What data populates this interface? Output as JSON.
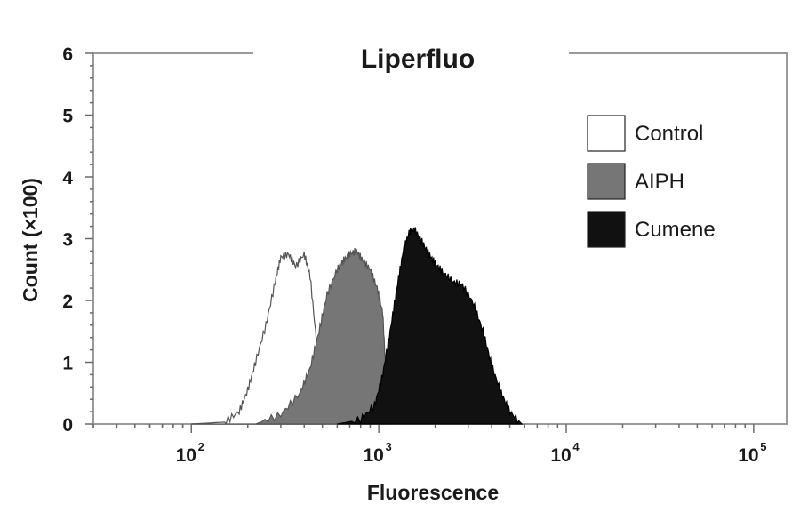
{
  "chart_data": {
    "type": "area",
    "title": "Liperfluo",
    "xlabel": "Fluorescence",
    "ylabel": "Count (×100)",
    "x_scale": "log",
    "xlim": [
      30,
      150000
    ],
    "ylim": [
      0,
      6
    ],
    "x_ticks": [
      {
        "value": 100,
        "base": "10",
        "exp": "2"
      },
      {
        "value": 1000,
        "base": "10",
        "exp": "3"
      },
      {
        "value": 10000,
        "base": "10",
        "exp": "4"
      },
      {
        "value": 100000,
        "base": "10",
        "exp": "5"
      }
    ],
    "y_ticks": [
      "0",
      "1",
      "2",
      "3",
      "4",
      "5",
      "6"
    ],
    "grid": false,
    "legend_position": "top-right",
    "series": [
      {
        "name": "Control",
        "color": "#ffffff",
        "x": [
          100,
          150,
          180,
          200,
          220,
          250,
          280,
          300,
          330,
          360,
          400,
          430,
          470,
          520
        ],
        "y": [
          0,
          0.03,
          0.2,
          0.55,
          1.0,
          1.6,
          2.3,
          2.7,
          2.75,
          2.55,
          2.75,
          2.4,
          1.2,
          0
        ]
      },
      {
        "name": "AIPH",
        "color": "#767676",
        "x": [
          220,
          300,
          380,
          430,
          480,
          530,
          600,
          650,
          700,
          760,
          820,
          900,
          980,
          1050,
          1100,
          1150
        ],
        "y": [
          0,
          0.15,
          0.5,
          0.9,
          1.5,
          2.1,
          2.5,
          2.65,
          2.75,
          2.8,
          2.65,
          2.5,
          2.2,
          1.8,
          0.6,
          0
        ]
      },
      {
        "name": "Cumene",
        "color": "#111111",
        "x": [
          600,
          800,
          950,
          1050,
          1150,
          1250,
          1350,
          1450,
          1550,
          1700,
          1850,
          2000,
          2200,
          2500,
          2800,
          3200,
          3600,
          4000,
          4500,
          5000,
          5800
        ],
        "y": [
          0,
          0.07,
          0.3,
          0.8,
          1.5,
          2.2,
          2.8,
          3.1,
          3.15,
          2.95,
          2.75,
          2.6,
          2.45,
          2.3,
          2.25,
          1.95,
          1.5,
          0.95,
          0.5,
          0.2,
          0
        ]
      }
    ]
  }
}
